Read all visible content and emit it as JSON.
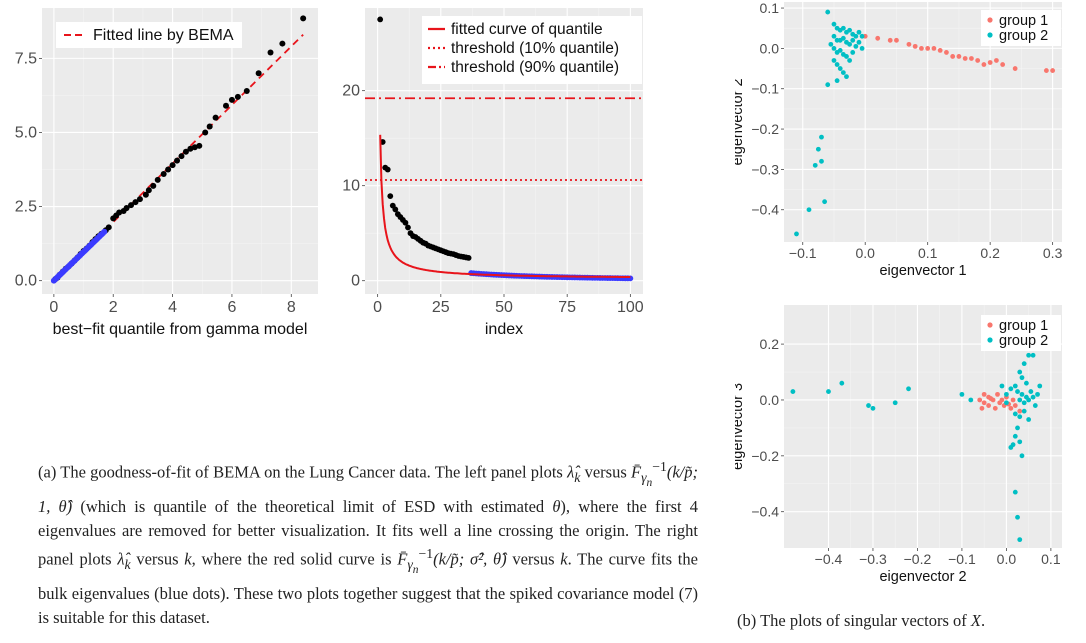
{
  "colors": {
    "panel_bg": "#ebebeb",
    "grid_major": "#ffffff",
    "grid_minor": "#f4f4f4",
    "black_points": "#000000",
    "bulk_points": "#3b3bff",
    "fit_red": "#e8141b",
    "group1": "#f8766d",
    "group2": "#00bfc4"
  },
  "chart_data": [
    {
      "id": "qq",
      "type": "scatter",
      "xlabel": "best−fit quantile from gamma model",
      "ylabel": "",
      "xlim": [
        -0.4,
        8.9
      ],
      "ylim": [
        -0.45,
        9.2
      ],
      "xticks": [
        0,
        2,
        4,
        6,
        8
      ],
      "xtick_labels": [
        "0",
        "2",
        "4",
        "6",
        "8"
      ],
      "yticks": [
        0,
        2.5,
        5,
        7.5
      ],
      "ytick_labels": [
        "0.0",
        "2.5",
        "5.0",
        "7.5"
      ],
      "grid": true,
      "legend": {
        "position": "top-left",
        "entries": [
          {
            "label": "Fitted line by BEMA",
            "style": "dashed",
            "color": "#e8141b"
          }
        ]
      },
      "series": [
        {
          "name": "Fitted line by BEMA",
          "kind": "line",
          "style": "dashed",
          "x": [
            0,
            8.4
          ],
          "y": [
            0,
            8.3
          ]
        },
        {
          "kind": "points",
          "x": [
            0.05,
            0.12,
            0.2,
            0.3,
            0.4,
            0.5,
            0.6,
            0.7,
            0.8,
            0.9,
            1.0,
            1.1,
            1.2,
            1.3,
            1.4,
            1.5,
            1.6,
            1.75,
            1.85,
            2.0,
            2.1,
            2.2,
            2.35,
            2.45,
            2.6,
            2.75,
            2.9,
            3.1,
            3.2,
            3.35,
            3.5,
            3.7,
            3.85,
            4.0,
            4.15,
            4.3,
            4.45,
            4.6,
            4.75,
            4.9,
            5.1,
            5.25,
            5.45,
            5.8,
            6.0,
            6.2,
            6.5,
            6.9,
            7.3,
            7.7,
            8.4
          ],
          "y": [
            0.05,
            0.1,
            0.2,
            0.3,
            0.4,
            0.48,
            0.58,
            0.68,
            0.78,
            0.9,
            1.0,
            1.08,
            1.18,
            1.3,
            1.4,
            1.5,
            1.58,
            1.7,
            1.8,
            2.1,
            2.2,
            2.3,
            2.35,
            2.45,
            2.55,
            2.65,
            2.75,
            2.9,
            3.05,
            3.2,
            3.4,
            3.6,
            3.75,
            3.9,
            4.05,
            4.2,
            4.35,
            4.45,
            4.5,
            4.55,
            5.0,
            5.2,
            5.5,
            5.9,
            6.1,
            6.2,
            6.4,
            7.0,
            7.7,
            8.0,
            8.85
          ]
        },
        {
          "kind": "bulk",
          "x_range": [
            0,
            1.7
          ],
          "y_range": [
            0,
            1.65
          ]
        }
      ]
    },
    {
      "id": "scree",
      "type": "scatter",
      "xlabel": "index",
      "ylabel": "",
      "xlim": [
        -5,
        105
      ],
      "ylim": [
        -1.4,
        28.7
      ],
      "xticks": [
        0,
        25,
        50,
        75,
        100
      ],
      "xtick_labels": [
        "0",
        "25",
        "50",
        "75",
        "100"
      ],
      "yticks": [
        0,
        10,
        20
      ],
      "ytick_labels": [
        "0",
        "10",
        "20"
      ],
      "grid": true,
      "legend": {
        "position": "top-right",
        "entries": [
          {
            "label": "fitted curve of quantile",
            "style": "solid",
            "color": "#e8141b"
          },
          {
            "label": "threshold (10% quantile)",
            "style": "dotted",
            "color": "#e8141b"
          },
          {
            "label": "threshold (90% quantile)",
            "style": "dashdot",
            "color": "#e8141b"
          }
        ]
      },
      "thresholds": [
        {
          "label": "threshold (10% quantile)",
          "value": 10.6,
          "style": "dotted"
        },
        {
          "label": "threshold (90% quantile)",
          "value": 19.2,
          "style": "dashdot"
        }
      ],
      "curve": {
        "label": "fitted curve of quantile",
        "x_from": 1,
        "x_to": 100
      },
      "points": [
        [
          1,
          27.5
        ],
        [
          2,
          14.6
        ],
        [
          3,
          11.9
        ],
        [
          4,
          11.7
        ],
        [
          5,
          8.9
        ],
        [
          6,
          7.9
        ],
        [
          7,
          7.5
        ],
        [
          8,
          7.0
        ],
        [
          9,
          6.7
        ],
        [
          10,
          6.4
        ],
        [
          11,
          6.1
        ],
        [
          12,
          5.6
        ],
        [
          13,
          5.0
        ],
        [
          14,
          4.7
        ],
        [
          15,
          4.6
        ],
        [
          16,
          4.4
        ],
        [
          17,
          4.2
        ],
        [
          18,
          4.0
        ],
        [
          19,
          3.9
        ],
        [
          20,
          3.7
        ],
        [
          21,
          3.6
        ],
        [
          22,
          3.5
        ],
        [
          23,
          3.4
        ],
        [
          24,
          3.3
        ],
        [
          25,
          3.2
        ],
        [
          26,
          3.1
        ],
        [
          27,
          3.0
        ],
        [
          28,
          2.9
        ],
        [
          29,
          2.85
        ],
        [
          30,
          2.8
        ],
        [
          31,
          2.7
        ],
        [
          32,
          2.6
        ],
        [
          33,
          2.55
        ],
        [
          34,
          2.5
        ],
        [
          35,
          2.45
        ],
        [
          36,
          2.4
        ]
      ],
      "bulk_from": 37
    },
    {
      "id": "ev12",
      "type": "scatter",
      "xlabel": "eigenvector 1",
      "ylabel": "eigenvector 2",
      "xlim": [
        -0.13,
        0.315
      ],
      "ylim": [
        -0.48,
        0.115
      ],
      "xticks": [
        -0.1,
        0,
        0.1,
        0.2,
        0.3
      ],
      "xtick_labels": [
        "−0.1",
        "0.0",
        "0.1",
        "0.2",
        "0.3"
      ],
      "yticks": [
        0.1,
        0,
        -0.1,
        -0.2,
        -0.3,
        -0.4
      ],
      "ytick_labels": [
        "0.1",
        "0.0",
        "−0.1",
        "−0.2",
        "−0.3",
        "−0.4"
      ],
      "grid": true,
      "legend": {
        "position": "top-right",
        "entries": [
          {
            "label": "group 1",
            "color": "#f8766d"
          },
          {
            "label": "group 2",
            "color": "#00bfc4"
          }
        ]
      },
      "series": [
        {
          "name": "group 1",
          "color": "#f8766d",
          "points": [
            [
              0.0,
              0.03
            ],
            [
              0.02,
              0.025
            ],
            [
              0.04,
              0.02
            ],
            [
              0.05,
              0.02
            ],
            [
              0.07,
              0.01
            ],
            [
              0.08,
              0.005
            ],
            [
              0.09,
              0.0
            ],
            [
              0.1,
              0.0
            ],
            [
              0.11,
              0.0
            ],
            [
              0.12,
              -0.005
            ],
            [
              0.13,
              -0.01
            ],
            [
              0.14,
              -0.02
            ],
            [
              0.15,
              -0.02
            ],
            [
              0.16,
              -0.025
            ],
            [
              0.17,
              -0.025
            ],
            [
              0.18,
              -0.03
            ],
            [
              0.19,
              -0.04
            ],
            [
              0.2,
              -0.035
            ],
            [
              0.21,
              -0.03
            ],
            [
              0.22,
              -0.04
            ],
            [
              0.24,
              -0.05
            ],
            [
              0.29,
              -0.055
            ],
            [
              0.3,
              -0.055
            ]
          ]
        },
        {
          "name": "group 2",
          "color": "#00bfc4",
          "points": [
            [
              -0.06,
              0.09
            ],
            [
              -0.05,
              0.06
            ],
            [
              -0.045,
              0.05
            ],
            [
              -0.04,
              0.045
            ],
            [
              -0.035,
              0.05
            ],
            [
              -0.03,
              0.04
            ],
            [
              -0.025,
              0.045
            ],
            [
              -0.02,
              0.035
            ],
            [
              -0.015,
              0.03
            ],
            [
              -0.01,
              0.04
            ],
            [
              -0.005,
              0.03
            ],
            [
              -0.05,
              0.03
            ],
            [
              -0.045,
              0.02
            ],
            [
              -0.04,
              0.02
            ],
            [
              -0.035,
              0.025
            ],
            [
              -0.03,
              0.015
            ],
            [
              -0.025,
              0.01
            ],
            [
              -0.02,
              0.02
            ],
            [
              -0.015,
              0.005
            ],
            [
              -0.01,
              0.015
            ],
            [
              -0.005,
              0.0
            ],
            [
              -0.055,
              0.01
            ],
            [
              -0.05,
              0.0
            ],
            [
              -0.045,
              -0.01
            ],
            [
              -0.04,
              -0.005
            ],
            [
              -0.035,
              -0.015
            ],
            [
              -0.03,
              -0.02
            ],
            [
              -0.025,
              -0.03
            ],
            [
              -0.02,
              -0.01
            ],
            [
              -0.05,
              -0.03
            ],
            [
              -0.045,
              -0.04
            ],
            [
              -0.04,
              -0.05
            ],
            [
              -0.035,
              -0.06
            ],
            [
              -0.03,
              -0.07
            ],
            [
              -0.045,
              -0.08
            ],
            [
              -0.06,
              -0.09
            ],
            [
              -0.07,
              -0.22
            ],
            [
              -0.075,
              -0.25
            ],
            [
              -0.07,
              -0.28
            ],
            [
              -0.08,
              -0.29
            ],
            [
              -0.065,
              -0.38
            ],
            [
              -0.09,
              -0.4
            ],
            [
              -0.11,
              -0.46
            ]
          ]
        }
      ]
    },
    {
      "id": "ev23",
      "type": "scatter",
      "xlabel": "eigenvector 2",
      "ylabel": "eigenvector 3",
      "xlim": [
        -0.5,
        0.125
      ],
      "ylim": [
        -0.53,
        0.34
      ],
      "xticks": [
        -0.4,
        -0.3,
        -0.2,
        -0.1,
        0,
        0.1
      ],
      "xtick_labels": [
        "−0.4",
        "−0.3",
        "−0.2",
        "−0.1",
        "0.0",
        "0.1"
      ],
      "yticks": [
        0.2,
        0,
        -0.2,
        -0.4
      ],
      "ytick_labels": [
        "0.2",
        "0.0",
        "−0.2",
        "−0.4"
      ],
      "grid": true,
      "legend": {
        "position": "top-right",
        "entries": [
          {
            "label": "group 1",
            "color": "#f8766d"
          },
          {
            "label": "group 2",
            "color": "#00bfc4"
          }
        ]
      },
      "series": [
        {
          "name": "group 1",
          "color": "#f8766d",
          "points": [
            [
              -0.06,
              0.0
            ],
            [
              -0.05,
              -0.01
            ],
            [
              -0.04,
              0.01
            ],
            [
              -0.04,
              -0.02
            ],
            [
              -0.03,
              0.0
            ],
            [
              -0.025,
              -0.03
            ],
            [
              -0.02,
              0.02
            ],
            [
              -0.015,
              -0.01
            ],
            [
              -0.01,
              0.0
            ],
            [
              -0.005,
              -0.02
            ],
            [
              0.0,
              0.01
            ],
            [
              0.005,
              -0.015
            ],
            [
              0.01,
              -0.03
            ],
            [
              0.015,
              0.0
            ],
            [
              0.02,
              -0.02
            ],
            [
              -0.035,
              0.005
            ],
            [
              -0.05,
              0.02
            ],
            [
              -0.055,
              -0.03
            ],
            [
              0.03,
              -0.04
            ]
          ]
        },
        {
          "name": "group 2",
          "color": "#00bfc4",
          "points": [
            [
              -0.48,
              0.03
            ],
            [
              -0.4,
              0.03
            ],
            [
              -0.37,
              0.06
            ],
            [
              -0.31,
              -0.02
            ],
            [
              -0.3,
              -0.03
            ],
            [
              -0.25,
              -0.01
            ],
            [
              -0.22,
              0.04
            ],
            [
              -0.1,
              0.02
            ],
            [
              -0.08,
              0.0
            ],
            [
              0.0,
              0.02
            ],
            [
              0.01,
              0.04
            ],
            [
              0.02,
              0.05
            ],
            [
              0.025,
              0.03
            ],
            [
              0.03,
              0.1
            ],
            [
              0.035,
              0.08
            ],
            [
              0.04,
              0.13
            ],
            [
              0.045,
              0.06
            ],
            [
              0.05,
              0.16
            ],
            [
              0.06,
              0.16
            ],
            [
              0.03,
              0.0
            ],
            [
              0.035,
              0.02
            ],
            [
              0.04,
              -0.01
            ],
            [
              0.045,
              0.01
            ],
            [
              0.05,
              0.0
            ],
            [
              0.055,
              0.03
            ],
            [
              0.06,
              0.01
            ],
            [
              0.065,
              -0.02
            ],
            [
              0.07,
              0.02
            ],
            [
              0.075,
              0.05
            ],
            [
              0.03,
              -0.06
            ],
            [
              0.025,
              -0.1
            ],
            [
              0.02,
              -0.13
            ],
            [
              0.015,
              -0.16
            ],
            [
              0.03,
              -0.15
            ],
            [
              0.035,
              -0.2
            ],
            [
              0.01,
              -0.17
            ],
            [
              0.02,
              -0.33
            ],
            [
              0.025,
              -0.42
            ],
            [
              0.03,
              -0.5
            ],
            [
              0.04,
              -0.04
            ],
            [
              0.02,
              -0.05
            ],
            [
              0.05,
              -0.07
            ],
            [
              -0.01,
              0.05
            ],
            [
              0.0,
              -0.01
            ]
          ]
        }
      ]
    }
  ],
  "captions": {
    "a": {
      "label": "(a)",
      "text1": " The goodness-of-fit of BEMA on the Lung Cancer data. The left panel plots ",
      "m1": "λ̂",
      "m1sub": "k",
      "text2": " versus ",
      "m2": "F̄",
      "m2sub": "γ",
      "m2subsub": "n",
      "m2sup": "−1",
      "m2arg": "(k/p̃; 1, θ̂)",
      "text3": " (which is quantile of the theoretical limit of ESD with estimated ",
      "m3": "θ",
      "text4": "), where the first 4 eigenvalues are removed for better visualization. It fits well a line crossing the origin. The right panel plots ",
      "m4": "λ̂",
      "m4sub": "k",
      "text5": " versus ",
      "m5": "k",
      "text6": ", where the red solid curve is ",
      "m6": "F̄",
      "m6sub": "γ",
      "m6subsub": "n",
      "m6sup": "−1",
      "m6arg": "(k/p̃; σ̂², θ̂)",
      "text7": " versus ",
      "m7": "k",
      "text8": ". The curve fits the bulk eigenvalues (blue dots). These two plots together suggest that the spiked covariance model (7) is suitable for this dataset."
    },
    "b": {
      "label": "(b)",
      "text": " The plots of singular vectors of ",
      "m": "X",
      "end": "."
    }
  }
}
